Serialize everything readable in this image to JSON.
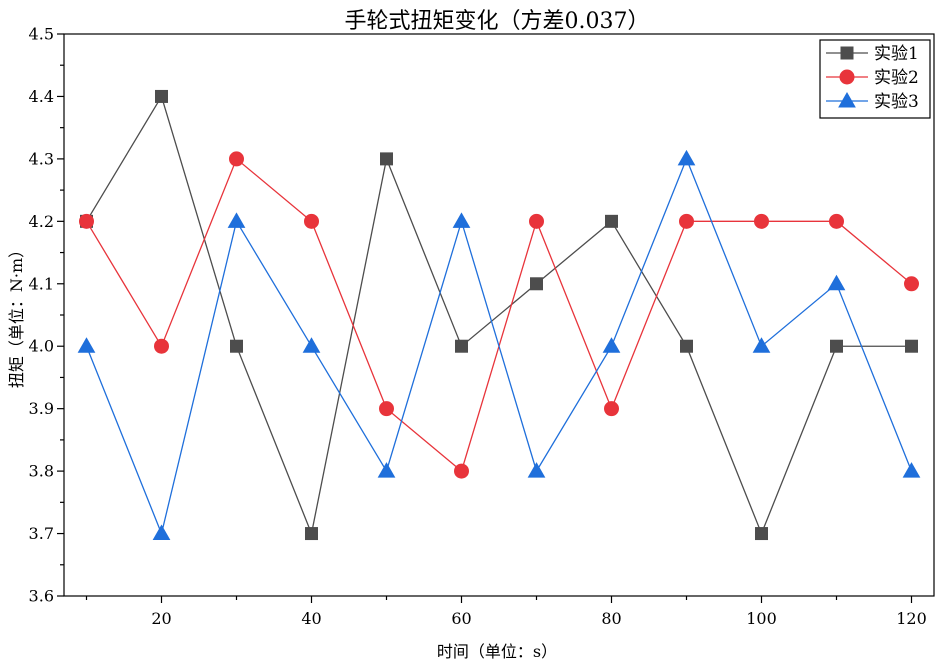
{
  "chart_data": {
    "type": "line",
    "title": "手轮式扭矩变化（方差0.037）",
    "xlabel": "时间（单位：s）",
    "ylabel": "扭矩（单位：N·m）",
    "xlim": [
      7,
      123
    ],
    "ylim": [
      3.6,
      4.5
    ],
    "xticks": [
      20,
      40,
      60,
      80,
      100,
      120
    ],
    "xtick_labels": [
      "20",
      "40",
      "60",
      "80",
      "100",
      "120"
    ],
    "yticks": [
      3.6,
      3.7,
      3.8,
      3.9,
      4.0,
      4.1,
      4.2,
      4.3,
      4.4,
      4.5
    ],
    "ytick_labels": [
      "3.6",
      "3.7",
      "3.8",
      "3.9",
      "4.0",
      "4.1",
      "4.2",
      "4.3",
      "4.4",
      "4.5"
    ],
    "grid": false,
    "legend_position": "top-right",
    "x": [
      10,
      20,
      30,
      40,
      50,
      60,
      70,
      80,
      90,
      100,
      110,
      120
    ],
    "series": [
      {
        "name": "实验1",
        "color": "#4d4d4d",
        "marker": "square",
        "values": [
          4.2,
          4.4,
          4.0,
          3.7,
          4.3,
          4.0,
          4.1,
          4.2,
          4.0,
          3.7,
          4.0,
          4.0
        ]
      },
      {
        "name": "实验2",
        "color": "#e8343b",
        "marker": "circle",
        "values": [
          4.2,
          4.0,
          4.3,
          4.2,
          3.9,
          3.8,
          4.2,
          3.9,
          4.2,
          4.2,
          4.2,
          4.1
        ]
      },
      {
        "name": "实验3",
        "color": "#1f6fdb",
        "marker": "triangle",
        "values": [
          4.0,
          3.7,
          4.2,
          4.0,
          3.8,
          4.2,
          3.8,
          4.0,
          4.3,
          4.0,
          4.1,
          3.8
        ]
      }
    ]
  }
}
